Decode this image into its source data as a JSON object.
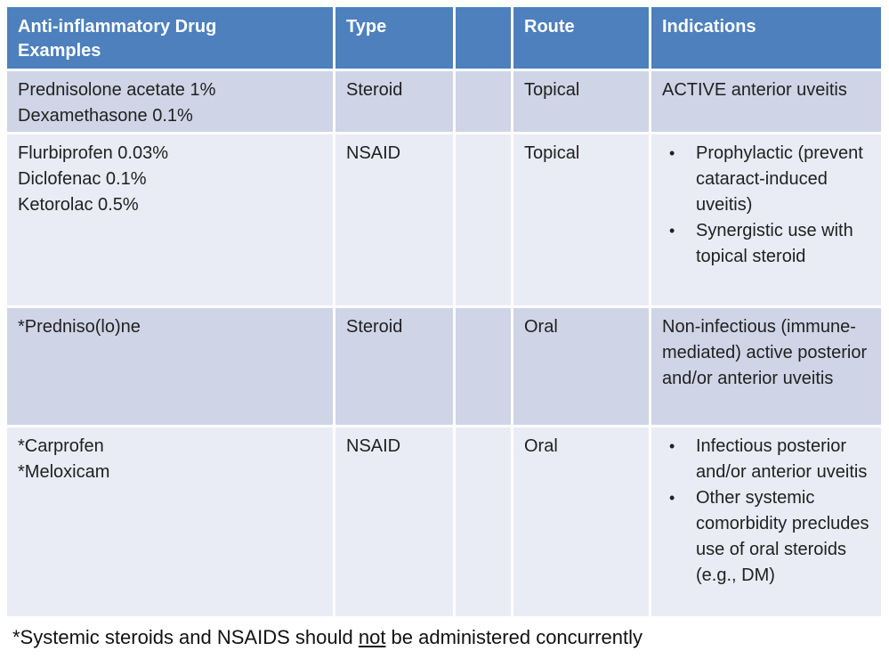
{
  "theme": {
    "header_bg": "#4d80bd",
    "header_text": "#ffffff",
    "row_dark_bg": "#cfd5e6",
    "row_light_bg": "#e9ecf4",
    "body_text": "#212121"
  },
  "table": {
    "headers": [
      "Anti-inflammatory Drug Examples",
      "Type",
      "",
      "Route",
      "Indications"
    ],
    "rows": [
      {
        "drugs": [
          "Prednisolone acetate 1%",
          "Dexamethasone 0.1%"
        ],
        "type": "Steroid",
        "route": "Topical",
        "indications_text": "ACTIVE anterior uveitis"
      },
      {
        "drugs": [
          "Flurbiprofen 0.03%",
          "Diclofenac 0.1%",
          "Ketorolac 0.5%"
        ],
        "type": "NSAID",
        "route": "Topical",
        "indications_bullets": [
          "Prophylactic (prevent cataract-induced uveitis)",
          "Synergistic use with topical steroid"
        ]
      },
      {
        "drugs": [
          "*Predniso(lo)ne"
        ],
        "type": "Steroid",
        "route": "Oral",
        "indications_text": "Non-infectious (immune-mediated) active posterior and/or anterior uveitis"
      },
      {
        "drugs": [
          "*Carprofen",
          "*Meloxicam"
        ],
        "type": "NSAID",
        "route": "Oral",
        "indications_bullets": [
          "Infectious posterior and/or anterior uveitis",
          "Other systemic comorbidity precludes use of oral steroids (e.g., DM)"
        ]
      }
    ]
  },
  "footnote": {
    "prefix": "*Systemic steroids and NSAIDS should ",
    "underlined": "not",
    "suffix": " be administered concurrently"
  },
  "bullet_char": "•"
}
